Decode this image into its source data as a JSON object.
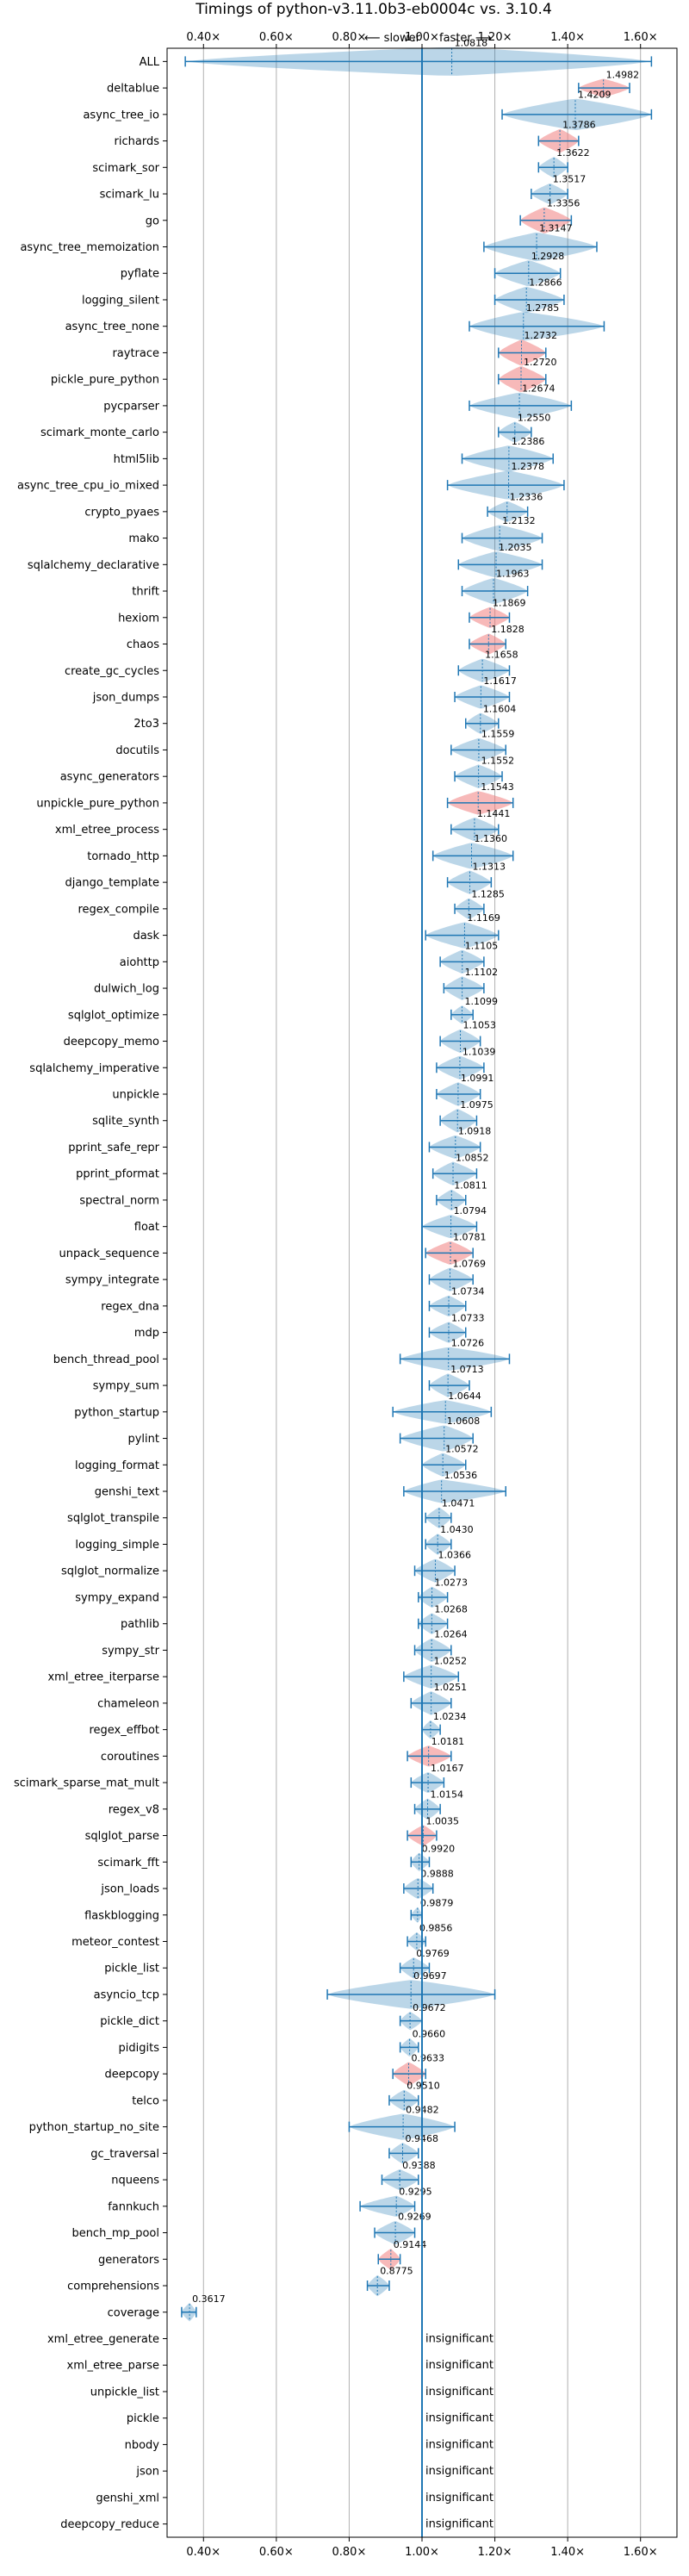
{
  "chart_data": {
    "type": "violin",
    "title": "Timings of python-v3.11.0b3-eb0004c vs. 3.10.4",
    "slower_label": "⟵ slower",
    "faster_label": "faster ⟶",
    "xlim": [
      0.3,
      1.7
    ],
    "xticks": [
      0.4,
      0.6,
      0.8,
      1.0,
      1.2,
      1.4,
      1.6
    ],
    "xtick_labels": [
      "0.40×",
      "0.60×",
      "0.80×",
      "1.00×",
      "1.20×",
      "1.40×",
      "1.60×"
    ],
    "reference": 1.0,
    "benchmarks": [
      {
        "name": "ALL",
        "value": 1.0818,
        "label": "1.0818",
        "lo": 0.35,
        "hi": 1.63,
        "w": 0.55,
        "color": "blue"
      },
      {
        "name": "deltablue",
        "value": 1.4982,
        "label": "1.4982",
        "lo": 1.43,
        "hi": 1.57,
        "w": 0.35,
        "color": "red"
      },
      {
        "name": "async_tree_io",
        "value": 1.4209,
        "label": "1.4209",
        "lo": 1.22,
        "hi": 1.63,
        "w": 0.6,
        "color": "blue"
      },
      {
        "name": "richards",
        "value": 1.3786,
        "label": "1.3786",
        "lo": 1.32,
        "hi": 1.43,
        "w": 0.45,
        "color": "red"
      },
      {
        "name": "scimark_sor",
        "value": 1.3622,
        "label": "1.3622",
        "lo": 1.32,
        "hi": 1.4,
        "w": 0.4,
        "color": "blue"
      },
      {
        "name": "scimark_lu",
        "value": 1.3517,
        "label": "1.3517",
        "lo": 1.3,
        "hi": 1.4,
        "w": 0.4,
        "color": "blue"
      },
      {
        "name": "go",
        "value": 1.3356,
        "label": "1.3356",
        "lo": 1.27,
        "hi": 1.41,
        "w": 0.5,
        "color": "red"
      },
      {
        "name": "async_tree_memoization",
        "value": 1.3147,
        "label": "1.3147",
        "lo": 1.17,
        "hi": 1.48,
        "w": 0.55,
        "color": "blue"
      },
      {
        "name": "pyflate",
        "value": 1.2928,
        "label": "1.2928",
        "lo": 1.2,
        "hi": 1.38,
        "w": 0.5,
        "color": "blue"
      },
      {
        "name": "logging_silent",
        "value": 1.2866,
        "label": "1.2866",
        "lo": 1.2,
        "hi": 1.39,
        "w": 0.5,
        "color": "blue"
      },
      {
        "name": "async_tree_none",
        "value": 1.2785,
        "label": "1.2785",
        "lo": 1.13,
        "hi": 1.5,
        "w": 0.55,
        "color": "blue"
      },
      {
        "name": "raytrace",
        "value": 1.2732,
        "label": "1.2732",
        "lo": 1.21,
        "hi": 1.34,
        "w": 0.5,
        "color": "red"
      },
      {
        "name": "pickle_pure_python",
        "value": 1.272,
        "label": "1.2720",
        "lo": 1.21,
        "hi": 1.34,
        "w": 0.5,
        "color": "red"
      },
      {
        "name": "pycparser",
        "value": 1.2674,
        "label": "1.2674",
        "lo": 1.13,
        "hi": 1.41,
        "w": 0.5,
        "color": "blue"
      },
      {
        "name": "scimark_monte_carlo",
        "value": 1.255,
        "label": "1.2550",
        "lo": 1.21,
        "hi": 1.3,
        "w": 0.4,
        "color": "blue"
      },
      {
        "name": "html5lib",
        "value": 1.2386,
        "label": "1.2386",
        "lo": 1.11,
        "hi": 1.36,
        "w": 0.5,
        "color": "blue"
      },
      {
        "name": "async_tree_cpu_io_mixed",
        "value": 1.2378,
        "label": "1.2378",
        "lo": 1.07,
        "hi": 1.39,
        "w": 0.55,
        "color": "blue"
      },
      {
        "name": "crypto_pyaes",
        "value": 1.2336,
        "label": "1.2336",
        "lo": 1.18,
        "hi": 1.29,
        "w": 0.4,
        "color": "blue"
      },
      {
        "name": "mako",
        "value": 1.2132,
        "label": "1.2132",
        "lo": 1.11,
        "hi": 1.33,
        "w": 0.5,
        "color": "blue"
      },
      {
        "name": "sqlalchemy_declarative",
        "value": 1.2035,
        "label": "1.2035",
        "lo": 1.1,
        "hi": 1.33,
        "w": 0.5,
        "color": "blue"
      },
      {
        "name": "thrift",
        "value": 1.1963,
        "label": "1.1963",
        "lo": 1.11,
        "hi": 1.29,
        "w": 0.5,
        "color": "blue"
      },
      {
        "name": "hexiom",
        "value": 1.1869,
        "label": "1.1869",
        "lo": 1.13,
        "hi": 1.24,
        "w": 0.4,
        "color": "red"
      },
      {
        "name": "chaos",
        "value": 1.1828,
        "label": "1.1828",
        "lo": 1.13,
        "hi": 1.23,
        "w": 0.4,
        "color": "red"
      },
      {
        "name": "create_gc_cycles",
        "value": 1.1658,
        "label": "1.1658",
        "lo": 1.1,
        "hi": 1.24,
        "w": 0.45,
        "color": "blue"
      },
      {
        "name": "json_dumps",
        "value": 1.1617,
        "label": "1.1617",
        "lo": 1.09,
        "hi": 1.24,
        "w": 0.45,
        "color": "blue"
      },
      {
        "name": "2to3",
        "value": 1.1604,
        "label": "1.1604",
        "lo": 1.12,
        "hi": 1.21,
        "w": 0.4,
        "color": "blue"
      },
      {
        "name": "docutils",
        "value": 1.1559,
        "label": "1.1559",
        "lo": 1.08,
        "hi": 1.23,
        "w": 0.45,
        "color": "blue"
      },
      {
        "name": "async_generators",
        "value": 1.1552,
        "label": "1.1552",
        "lo": 1.09,
        "hi": 1.22,
        "w": 0.45,
        "color": "blue"
      },
      {
        "name": "unpickle_pure_python",
        "value": 1.1543,
        "label": "1.1543",
        "lo": 1.07,
        "hi": 1.25,
        "w": 0.45,
        "color": "red"
      },
      {
        "name": "xml_etree_process",
        "value": 1.1441,
        "label": "1.1441",
        "lo": 1.08,
        "hi": 1.21,
        "w": 0.45,
        "color": "blue"
      },
      {
        "name": "tornado_http",
        "value": 1.136,
        "label": "1.1360",
        "lo": 1.03,
        "hi": 1.25,
        "w": 0.5,
        "color": "blue"
      },
      {
        "name": "django_template",
        "value": 1.1313,
        "label": "1.1313",
        "lo": 1.07,
        "hi": 1.19,
        "w": 0.45,
        "color": "blue"
      },
      {
        "name": "regex_compile",
        "value": 1.1285,
        "label": "1.1285",
        "lo": 1.09,
        "hi": 1.17,
        "w": 0.4,
        "color": "blue"
      },
      {
        "name": "dask",
        "value": 1.1169,
        "label": "1.1169",
        "lo": 1.01,
        "hi": 1.21,
        "w": 0.5,
        "color": "blue"
      },
      {
        "name": "aiohttp",
        "value": 1.1105,
        "label": "1.1105",
        "lo": 1.05,
        "hi": 1.17,
        "w": 0.45,
        "color": "blue"
      },
      {
        "name": "dulwich_log",
        "value": 1.1102,
        "label": "1.1102",
        "lo": 1.06,
        "hi": 1.17,
        "w": 0.45,
        "color": "blue"
      },
      {
        "name": "sqlglot_optimize",
        "value": 1.1099,
        "label": "1.1099",
        "lo": 1.08,
        "hi": 1.14,
        "w": 0.35,
        "color": "blue"
      },
      {
        "name": "deepcopy_memo",
        "value": 1.1053,
        "label": "1.1053",
        "lo": 1.05,
        "hi": 1.16,
        "w": 0.45,
        "color": "blue"
      },
      {
        "name": "sqlalchemy_imperative",
        "value": 1.1039,
        "label": "1.1039",
        "lo": 1.04,
        "hi": 1.17,
        "w": 0.45,
        "color": "blue"
      },
      {
        "name": "unpickle",
        "value": 1.0991,
        "label": "1.0991",
        "lo": 1.04,
        "hi": 1.16,
        "w": 0.45,
        "color": "blue"
      },
      {
        "name": "sqlite_synth",
        "value": 1.0975,
        "label": "1.0975",
        "lo": 1.05,
        "hi": 1.15,
        "w": 0.45,
        "color": "blue"
      },
      {
        "name": "pprint_safe_repr",
        "value": 1.0918,
        "label": "1.0918",
        "lo": 1.02,
        "hi": 1.16,
        "w": 0.45,
        "color": "blue"
      },
      {
        "name": "pprint_pformat",
        "value": 1.0852,
        "label": "1.0852",
        "lo": 1.03,
        "hi": 1.15,
        "w": 0.45,
        "color": "blue"
      },
      {
        "name": "spectral_norm",
        "value": 1.0811,
        "label": "1.0811",
        "lo": 1.04,
        "hi": 1.12,
        "w": 0.4,
        "color": "blue"
      },
      {
        "name": "float",
        "value": 1.0794,
        "label": "1.0794",
        "lo": 1.0,
        "hi": 1.15,
        "w": 0.45,
        "color": "blue"
      },
      {
        "name": "unpack_sequence",
        "value": 1.0781,
        "label": "1.0781",
        "lo": 1.01,
        "hi": 1.14,
        "w": 0.45,
        "color": "red"
      },
      {
        "name": "sympy_integrate",
        "value": 1.0769,
        "label": "1.0769",
        "lo": 1.02,
        "hi": 1.14,
        "w": 0.45,
        "color": "blue"
      },
      {
        "name": "regex_dna",
        "value": 1.0734,
        "label": "1.0734",
        "lo": 1.02,
        "hi": 1.12,
        "w": 0.4,
        "color": "blue"
      },
      {
        "name": "mdp",
        "value": 1.0733,
        "label": "1.0733",
        "lo": 1.02,
        "hi": 1.12,
        "w": 0.4,
        "color": "blue"
      },
      {
        "name": "bench_thread_pool",
        "value": 1.0726,
        "label": "1.0726",
        "lo": 0.94,
        "hi": 1.24,
        "w": 0.45,
        "color": "blue"
      },
      {
        "name": "sympy_sum",
        "value": 1.0713,
        "label": "1.0713",
        "lo": 1.02,
        "hi": 1.13,
        "w": 0.45,
        "color": "blue"
      },
      {
        "name": "python_startup",
        "value": 1.0644,
        "label": "1.0644",
        "lo": 0.92,
        "hi": 1.19,
        "w": 0.45,
        "color": "blue"
      },
      {
        "name": "pylint",
        "value": 1.0608,
        "label": "1.0608",
        "lo": 0.94,
        "hi": 1.14,
        "w": 0.5,
        "color": "blue"
      },
      {
        "name": "logging_format",
        "value": 1.0572,
        "label": "1.0572",
        "lo": 1.0,
        "hi": 1.12,
        "w": 0.45,
        "color": "blue"
      },
      {
        "name": "genshi_text",
        "value": 1.0536,
        "label": "1.0536",
        "lo": 0.95,
        "hi": 1.23,
        "w": 0.45,
        "color": "blue"
      },
      {
        "name": "sqlglot_transpile",
        "value": 1.0471,
        "label": "1.0471",
        "lo": 1.01,
        "hi": 1.08,
        "w": 0.4,
        "color": "blue"
      },
      {
        "name": "logging_simple",
        "value": 1.043,
        "label": "1.0430",
        "lo": 1.01,
        "hi": 1.08,
        "w": 0.4,
        "color": "blue"
      },
      {
        "name": "sqlglot_normalize",
        "value": 1.0366,
        "label": "1.0366",
        "lo": 0.98,
        "hi": 1.09,
        "w": 0.45,
        "color": "blue"
      },
      {
        "name": "sympy_expand",
        "value": 1.0273,
        "label": "1.0273",
        "lo": 0.99,
        "hi": 1.07,
        "w": 0.4,
        "color": "blue"
      },
      {
        "name": "pathlib",
        "value": 1.0268,
        "label": "1.0268",
        "lo": 0.99,
        "hi": 1.07,
        "w": 0.4,
        "color": "blue"
      },
      {
        "name": "sympy_str",
        "value": 1.0264,
        "label": "1.0264",
        "lo": 0.98,
        "hi": 1.08,
        "w": 0.45,
        "color": "blue"
      },
      {
        "name": "xml_etree_iterparse",
        "value": 1.0252,
        "label": "1.0252",
        "lo": 0.95,
        "hi": 1.1,
        "w": 0.45,
        "color": "blue"
      },
      {
        "name": "chameleon",
        "value": 1.0251,
        "label": "1.0251",
        "lo": 0.97,
        "hi": 1.08,
        "w": 0.45,
        "color": "blue"
      },
      {
        "name": "regex_effbot",
        "value": 1.0234,
        "label": "1.0234",
        "lo": 1.0,
        "hi": 1.05,
        "w": 0.35,
        "color": "blue"
      },
      {
        "name": "coroutines",
        "value": 1.0181,
        "label": "1.0181",
        "lo": 0.96,
        "hi": 1.08,
        "w": 0.4,
        "color": "red"
      },
      {
        "name": "scimark_sparse_mat_mult",
        "value": 1.0167,
        "label": "1.0167",
        "lo": 0.97,
        "hi": 1.06,
        "w": 0.4,
        "color": "blue"
      },
      {
        "name": "regex_v8",
        "value": 1.0154,
        "label": "1.0154",
        "lo": 0.98,
        "hi": 1.05,
        "w": 0.4,
        "color": "blue"
      },
      {
        "name": "sqlglot_parse",
        "value": 1.0035,
        "label": "1.0035",
        "lo": 0.96,
        "hi": 1.04,
        "w": 0.4,
        "color": "red"
      },
      {
        "name": "scimark_fft",
        "value": 0.992,
        "label": "0.9920",
        "lo": 0.97,
        "hi": 1.02,
        "w": 0.35,
        "color": "blue"
      },
      {
        "name": "json_loads",
        "value": 0.9888,
        "label": "0.9888",
        "lo": 0.95,
        "hi": 1.03,
        "w": 0.4,
        "color": "blue"
      },
      {
        "name": "flaskblogging",
        "value": 0.9879,
        "label": "0.9879",
        "lo": 0.97,
        "hi": 1.0,
        "w": 0.3,
        "color": "blue"
      },
      {
        "name": "meteor_contest",
        "value": 0.9856,
        "label": "0.9856",
        "lo": 0.96,
        "hi": 1.01,
        "w": 0.35,
        "color": "blue"
      },
      {
        "name": "pickle_list",
        "value": 0.9769,
        "label": "0.9769",
        "lo": 0.94,
        "hi": 1.02,
        "w": 0.4,
        "color": "blue"
      },
      {
        "name": "asyncio_tcp",
        "value": 0.9697,
        "label": "0.9697",
        "lo": 0.74,
        "hi": 1.2,
        "w": 0.55,
        "color": "blue"
      },
      {
        "name": "pickle_dict",
        "value": 0.9672,
        "label": "0.9672",
        "lo": 0.94,
        "hi": 1.0,
        "w": 0.35,
        "color": "blue"
      },
      {
        "name": "pidigits",
        "value": 0.966,
        "label": "0.9660",
        "lo": 0.94,
        "hi": 0.99,
        "w": 0.35,
        "color": "blue"
      },
      {
        "name": "deepcopy",
        "value": 0.9633,
        "label": "0.9633",
        "lo": 0.92,
        "hi": 1.01,
        "w": 0.45,
        "color": "red"
      },
      {
        "name": "telco",
        "value": 0.951,
        "label": "0.9510",
        "lo": 0.91,
        "hi": 0.99,
        "w": 0.4,
        "color": "blue"
      },
      {
        "name": "python_startup_no_site",
        "value": 0.9482,
        "label": "0.9482",
        "lo": 0.8,
        "hi": 1.09,
        "w": 0.5,
        "color": "blue"
      },
      {
        "name": "gc_traversal",
        "value": 0.9468,
        "label": "0.9468",
        "lo": 0.91,
        "hi": 0.99,
        "w": 0.4,
        "color": "blue"
      },
      {
        "name": "nqueens",
        "value": 0.9388,
        "label": "0.9388",
        "lo": 0.89,
        "hi": 0.99,
        "w": 0.4,
        "color": "blue"
      },
      {
        "name": "fannkuch",
        "value": 0.9295,
        "label": "0.9295",
        "lo": 0.83,
        "hi": 0.98,
        "w": 0.4,
        "color": "blue"
      },
      {
        "name": "bench_mp_pool",
        "value": 0.9269,
        "label": "0.9269",
        "lo": 0.87,
        "hi": 0.98,
        "w": 0.45,
        "color": "blue"
      },
      {
        "name": "generators",
        "value": 0.9144,
        "label": "0.9144",
        "lo": 0.88,
        "hi": 0.94,
        "w": 0.4,
        "color": "red"
      },
      {
        "name": "comprehensions",
        "value": 0.8775,
        "label": "0.8775",
        "lo": 0.85,
        "hi": 0.91,
        "w": 0.4,
        "color": "blue"
      },
      {
        "name": "coverage",
        "value": 0.3617,
        "label": "0.3617",
        "lo": 0.34,
        "hi": 0.38,
        "w": 0.35,
        "color": "blue"
      },
      {
        "name": "xml_etree_generate",
        "value": null,
        "label": "insignificant",
        "color": "none"
      },
      {
        "name": "xml_etree_parse",
        "value": null,
        "label": "insignificant",
        "color": "none"
      },
      {
        "name": "unpickle_list",
        "value": null,
        "label": "insignificant",
        "color": "none"
      },
      {
        "name": "pickle",
        "value": null,
        "label": "insignificant",
        "color": "none"
      },
      {
        "name": "nbody",
        "value": null,
        "label": "insignificant",
        "color": "none"
      },
      {
        "name": "json",
        "value": null,
        "label": "insignificant",
        "color": "none"
      },
      {
        "name": "genshi_xml",
        "value": null,
        "label": "insignificant",
        "color": "none"
      },
      {
        "name": "deepcopy_reduce",
        "value": null,
        "label": "insignificant",
        "color": "none"
      }
    ]
  }
}
